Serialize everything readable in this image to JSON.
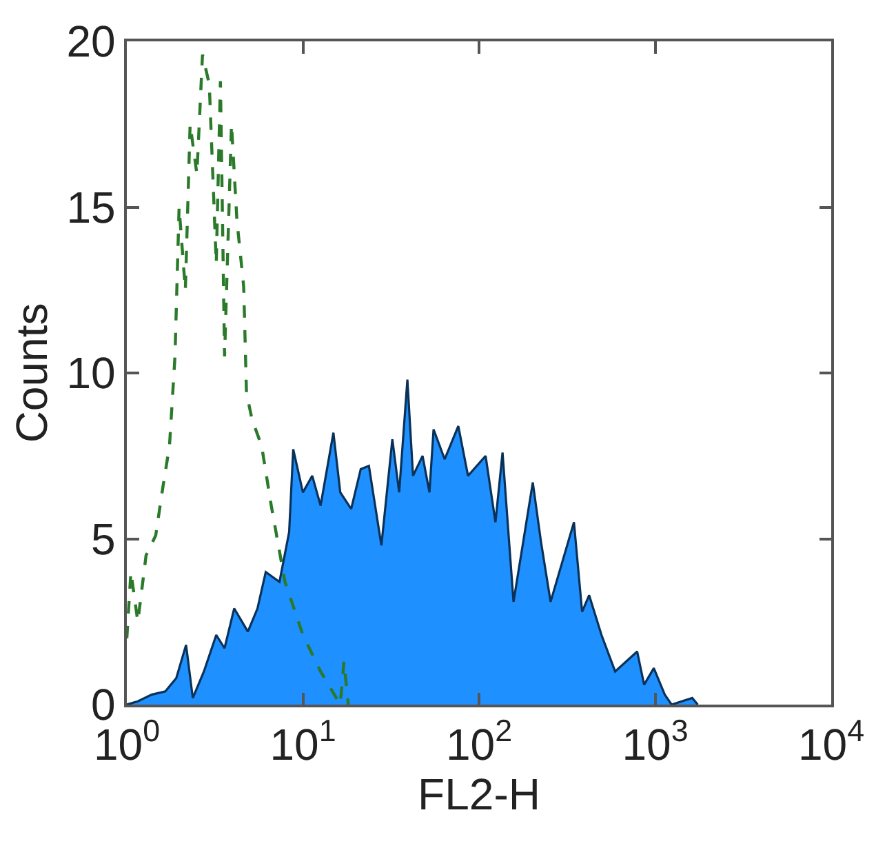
{
  "chart_data": {
    "type": "area",
    "xlabel": "FL2-H",
    "ylabel": "Counts",
    "log": "x",
    "grid": false,
    "xlim": [
      1,
      10000
    ],
    "xticks": [
      {
        "value": 1,
        "label": "10$^{0}$"
      },
      {
        "value": 10,
        "label": "10$^{1}$"
      },
      {
        "value": 100,
        "label": "10$^{2}$"
      },
      {
        "value": 1000,
        "label": "10$^{3}$"
      },
      {
        "value": 10000,
        "label": "10$^{4}$"
      }
    ],
    "ylim": [
      0,
      20
    ],
    "yticks": [
      0,
      5,
      10,
      15,
      20
    ],
    "series": [
      {
        "color": "#1e90ff",
        "x": [
          1.0,
          1.155,
          1.382,
          1.655,
          1.91,
          2.17,
          2.37,
          2.74,
          3.22,
          3.59,
          4.07,
          4.87,
          5.52,
          6.15,
          7.36,
          8.35,
          8.81,
          10.0,
          11.3,
          12.6,
          14.9,
          16.3,
          18.8,
          21.3,
          23.7,
          27.9,
          32.2,
          35.2,
          39.2,
          42.2,
          47.8,
          52.3,
          55.2,
          63.8,
          76.3,
          86.6,
          109,
          124,
          136,
          157,
          202,
          225,
          255,
          346,
          385,
          422,
          496,
          593,
          791,
          866,
          983,
          1135,
          1241,
          1625,
          1746
        ],
        "values": [
          0,
          0.1,
          0.3,
          0.4,
          0.8,
          1.8,
          0.2,
          1.0,
          2.1,
          1.7,
          2.9,
          2.2,
          2.9,
          4.0,
          3.7,
          5.2,
          7.7,
          6.4,
          6.9,
          6.0,
          8.2,
          6.4,
          5.9,
          7.1,
          7.2,
          4.8,
          8.0,
          6.4,
          9.8,
          6.9,
          7.5,
          6.4,
          8.3,
          7.4,
          8.4,
          6.9,
          7.5,
          5.5,
          7.6,
          3.1,
          6.7,
          4.9,
          3.1,
          5.5,
          2.8,
          3.3,
          2.1,
          1.0,
          1.6,
          0.6,
          1.1,
          0.3,
          0,
          0.2,
          0
        ]
      },
      {
        "type": "line",
        "color": "#2a7a2a",
        "line_style": "dashed",
        "x": [
          1.0,
          1.055,
          1.155,
          1.286,
          1.459,
          1.596,
          1.747,
          1.877,
          1.981,
          2.15,
          2.288,
          2.5,
          2.69,
          2.94,
          3.22,
          3.4,
          3.59,
          3.93,
          4.22,
          4.61,
          4.78,
          5.14,
          5.83,
          6.61,
          7.91,
          10.0,
          12.6,
          16.3,
          17.1,
          18.1
        ],
        "values": [
          2.0,
          4.0,
          2.5,
          4.5,
          5.1,
          6.5,
          7.8,
          10.5,
          15.0,
          12.5,
          17.5,
          16.0,
          19.6,
          18.7,
          13.3,
          18.8,
          10.5,
          17.5,
          14.6,
          12.6,
          9.4,
          8.6,
          7.8,
          6.0,
          3.7,
          2.1,
          1.0,
          0,
          1.3,
          0
        ]
      }
    ]
  }
}
